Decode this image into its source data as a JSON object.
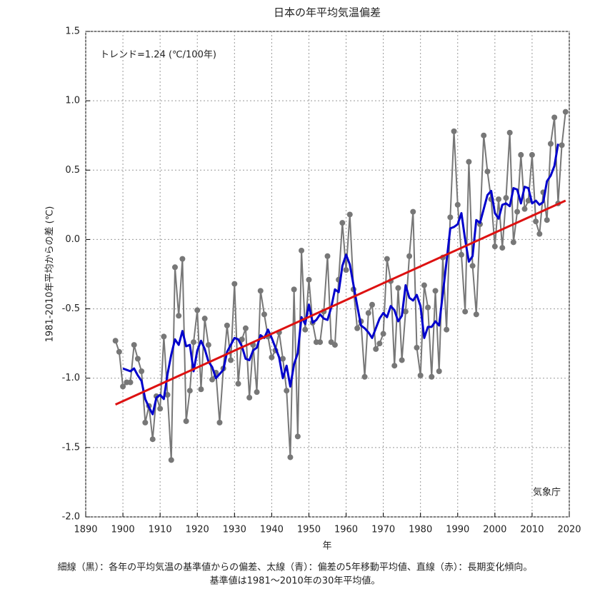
{
  "chart_data": {
    "type": "line",
    "title": "日本の年平均気温偏差",
    "annotation": "トレンド=1.24 (℃/100年)",
    "source": "気象庁",
    "x_label": "年",
    "y_label": "1981-2010年平均からの差 (℃)",
    "footnote": [
      "細線（黒）：各年の平均気温の基準値からの偏差、太線（青）：偏差の5年移動平均値、直線（赤）：長期変化傾向。",
      "基準値は1981〜2010年の30年平均値。"
    ],
    "xlim": [
      1890,
      2020
    ],
    "xticks": [
      1890,
      1900,
      1910,
      1920,
      1930,
      1940,
      1950,
      1960,
      1970,
      1980,
      1990,
      2000,
      2010,
      2020
    ],
    "ylim": [
      -2.0,
      1.5
    ],
    "yticks": [
      {
        "value": -2.0,
        "label": "-2.0"
      },
      -1.5,
      {
        "value": -1.0,
        "label": "-1.0"
      },
      -0.5,
      {
        "value": 0.0,
        "label": "0.0"
      },
      0.5,
      {
        "value": 1.0,
        "label": "1.0"
      },
      1.5
    ],
    "grid": true,
    "x": [
      1898,
      1899,
      1900,
      1901,
      1902,
      1903,
      1904,
      1905,
      1906,
      1907,
      1908,
      1909,
      1910,
      1911,
      1912,
      1913,
      1914,
      1915,
      1916,
      1917,
      1918,
      1919,
      1920,
      1921,
      1922,
      1923,
      1924,
      1925,
      1926,
      1927,
      1928,
      1929,
      1930,
      1931,
      1932,
      1933,
      1934,
      1935,
      1936,
      1937,
      1938,
      1939,
      1940,
      1941,
      1942,
      1943,
      1944,
      1945,
      1946,
      1947,
      1948,
      1949,
      1950,
      1951,
      1952,
      1953,
      1954,
      1955,
      1956,
      1957,
      1958,
      1959,
      1960,
      1961,
      1962,
      1963,
      1964,
      1965,
      1966,
      1967,
      1968,
      1969,
      1970,
      1971,
      1972,
      1973,
      1974,
      1975,
      1976,
      1977,
      1978,
      1979,
      1980,
      1981,
      1982,
      1983,
      1984,
      1985,
      1986,
      1987,
      1988,
      1989,
      1990,
      1991,
      1992,
      1993,
      1994,
      1995,
      1996,
      1997,
      1998,
      1999,
      2000,
      2001,
      2002,
      2003,
      2004,
      2005,
      2006,
      2007,
      2008,
      2009,
      2010,
      2011,
      2012,
      2013,
      2014,
      2015,
      2016,
      2017,
      2018,
      2019
    ],
    "series": [
      {
        "color": "#777777",
        "markers": true,
        "width": 2,
        "values": [
          -0.73,
          -0.81,
          -1.06,
          -1.03,
          -1.03,
          -0.76,
          -0.86,
          -0.95,
          -1.32,
          -1.2,
          -1.44,
          -1.13,
          -1.22,
          -0.7,
          -1.12,
          -1.59,
          -0.2,
          -0.55,
          -0.14,
          -1.31,
          -1.09,
          -0.74,
          -0.51,
          -1.08,
          -0.57,
          -0.76,
          -1.01,
          -0.96,
          -1.32,
          -0.93,
          -0.62,
          -0.87,
          -0.32,
          -1.04,
          -0.72,
          -0.64,
          -1.14,
          -0.76,
          -1.1,
          -0.37,
          -0.54,
          -0.7,
          -0.85,
          -0.8,
          -0.67,
          -0.86,
          -1.09,
          -1.57,
          -0.36,
          -1.42,
          -0.08,
          -0.65,
          -0.29,
          -0.6,
          -0.74,
          -0.74,
          -0.52,
          -0.12,
          -0.74,
          -0.76,
          -0.29,
          0.12,
          -0.22,
          0.18,
          -0.36,
          -0.64,
          -0.59,
          -0.99,
          -0.53,
          -0.47,
          -0.79,
          -0.75,
          -0.68,
          -0.14,
          -0.3,
          -0.91,
          -0.35,
          -0.87,
          -0.52,
          -0.12,
          0.2,
          -0.78,
          -0.98,
          -0.33,
          -0.49,
          -0.99,
          -0.37,
          -0.95,
          -0.13,
          -0.65,
          0.16,
          0.78,
          0.25,
          -0.11,
          -0.52,
          0.56,
          -0.19,
          -0.54,
          0.11,
          0.75,
          0.49,
          0.29,
          -0.05,
          0.29,
          -0.06,
          0.3,
          0.77,
          -0.02,
          0.2,
          0.61,
          0.22,
          0.28,
          0.61,
          0.13,
          0.04,
          0.34,
          0.14,
          0.69,
          0.88,
          0.26,
          0.68,
          0.92
        ]
      },
      {
        "color": "#0000cc",
        "markers": false,
        "width": 3,
        "values": [
          null,
          null,
          -0.93,
          -0.94,
          -0.95,
          -0.93,
          -0.98,
          -1.02,
          -1.15,
          -1.21,
          -1.26,
          -1.14,
          -1.12,
          -1.15,
          -0.97,
          -0.83,
          -0.72,
          -0.76,
          -0.66,
          -0.77,
          -0.76,
          -0.95,
          -0.8,
          -0.73,
          -0.79,
          -0.88,
          -0.92,
          -1.0,
          -0.97,
          -0.94,
          -0.81,
          -0.76,
          -0.71,
          -0.72,
          -0.77,
          -0.86,
          -0.87,
          -0.8,
          -0.78,
          -0.69,
          -0.71,
          -0.65,
          -0.71,
          -0.78,
          -0.85,
          -1.0,
          -0.91,
          -1.06,
          -0.9,
          -0.82,
          -0.56,
          -0.61,
          -0.47,
          -0.6,
          -0.58,
          -0.54,
          -0.57,
          -0.58,
          -0.49,
          -0.36,
          -0.38,
          -0.19,
          -0.11,
          -0.18,
          -0.33,
          -0.48,
          -0.62,
          -0.64,
          -0.67,
          -0.71,
          -0.64,
          -0.57,
          -0.53,
          -0.56,
          -0.48,
          -0.51,
          -0.59,
          -0.55,
          -0.33,
          -0.42,
          -0.44,
          -0.4,
          -0.48,
          -0.71,
          -0.63,
          -0.63,
          -0.59,
          -0.62,
          -0.39,
          -0.16,
          0.08,
          0.09,
          0.11,
          0.19,
          0.0,
          -0.16,
          -0.12,
          0.14,
          0.12,
          0.22,
          0.32,
          0.35,
          0.19,
          0.15,
          0.25,
          0.26,
          0.24,
          0.37,
          0.36,
          0.26,
          0.38,
          0.37,
          0.26,
          0.28,
          0.25,
          0.27,
          0.42,
          0.46,
          0.53,
          0.69,
          null,
          null
        ]
      },
      {
        "color": "#dd1111",
        "markers": false,
        "width": 3,
        "x": [
          1898,
          2019
        ],
        "values": [
          -1.19,
          0.28
        ]
      }
    ]
  }
}
